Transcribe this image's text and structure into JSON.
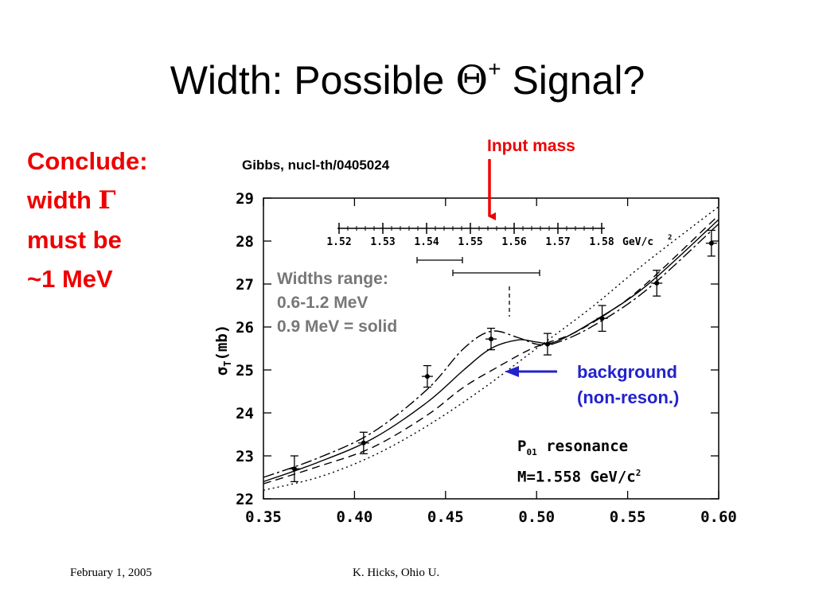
{
  "slide": {
    "title_prefix": "Width: Possible ",
    "title_symbol": "Θ",
    "title_superscript": "+",
    "title_suffix": " Signal?",
    "conclude_lines": [
      "Conclude:",
      "width ",
      "Γ",
      "must be",
      "~1 MeV"
    ],
    "citation": "Gibbs, nucl-th/0405024",
    "input_mass_label": "Input mass",
    "widths_lines": [
      "Widths range:",
      "0.6-1.2 MeV",
      "0.9 MeV = solid"
    ],
    "background_lines": [
      "background",
      "(non-reson.)"
    ],
    "resonance_lines": [
      "P",
      "01",
      " resonance",
      "M=1.558 GeV/c",
      "2"
    ],
    "footer_date": "February 1, 2005",
    "footer_author": "K. Hicks, Ohio U.",
    "accent_red": "#ee0000",
    "accent_blue": "#2222cc"
  },
  "chart_data": {
    "type": "line",
    "xlim": [
      0.35,
      0.6
    ],
    "ylim": [
      22,
      29
    ],
    "x_ticks": [
      "0.35",
      "0.40",
      "0.45",
      "0.50",
      "0.55",
      "0.60"
    ],
    "y_ticks": [
      "22",
      "23",
      "24",
      "25",
      "26",
      "27",
      "28",
      "29"
    ],
    "ylabel_main": "σ",
    "ylabel_sub": "T",
    "ylabel_unit": "(mb)",
    "mass_scale": {
      "labels": [
        "1.52",
        "1.53",
        "1.54",
        "1.55",
        "1.56",
        "1.57",
        "1.58"
      ],
      "unit": "GeV/c",
      "unit_sup": "2"
    },
    "points": [
      {
        "x": 0.367,
        "y": 22.7,
        "yerr": 0.3
      },
      {
        "x": 0.405,
        "y": 23.3,
        "yerr": 0.25
      },
      {
        "x": 0.44,
        "y": 24.85,
        "yerr": 0.25
      },
      {
        "x": 0.475,
        "y": 25.72,
        "yerr": 0.25
      },
      {
        "x": 0.506,
        "y": 25.6,
        "yerr": 0.25
      },
      {
        "x": 0.536,
        "y": 26.2,
        "yerr": 0.3
      },
      {
        "x": 0.566,
        "y": 27.02,
        "yerr": 0.3
      },
      {
        "x": 0.596,
        "y": 27.95,
        "yerr": 0.3
      }
    ],
    "series": [
      {
        "style": "solid",
        "x": [
          0.35,
          0.38,
          0.41,
          0.44,
          0.46,
          0.475,
          0.49,
          0.5,
          0.51,
          0.53,
          0.56,
          0.6
        ],
        "y": [
          22.4,
          22.85,
          23.4,
          24.25,
          25.0,
          25.5,
          25.7,
          25.65,
          25.65,
          26.1,
          26.95,
          28.5
        ]
      },
      {
        "style": "dashdot",
        "x": [
          0.35,
          0.38,
          0.41,
          0.44,
          0.46,
          0.475,
          0.49,
          0.5,
          0.51,
          0.53,
          0.56,
          0.6
        ],
        "y": [
          22.5,
          22.95,
          23.55,
          24.55,
          25.5,
          25.9,
          25.75,
          25.6,
          25.62,
          26.0,
          26.85,
          28.4
        ]
      },
      {
        "style": "dashed",
        "x": [
          0.35,
          0.38,
          0.41,
          0.44,
          0.46,
          0.48,
          0.495,
          0.505,
          0.52,
          0.54,
          0.56,
          0.6
        ],
        "y": [
          22.35,
          22.75,
          23.2,
          23.95,
          24.6,
          25.1,
          25.45,
          25.62,
          25.85,
          26.35,
          27.0,
          28.6
        ]
      },
      {
        "style": "dotted",
        "x": [
          0.35,
          0.38,
          0.41,
          0.44,
          0.47,
          0.5,
          0.53,
          0.56,
          0.6
        ],
        "y": [
          22.2,
          22.5,
          23.0,
          23.7,
          24.55,
          25.5,
          26.45,
          27.5,
          28.8
        ]
      }
    ]
  }
}
